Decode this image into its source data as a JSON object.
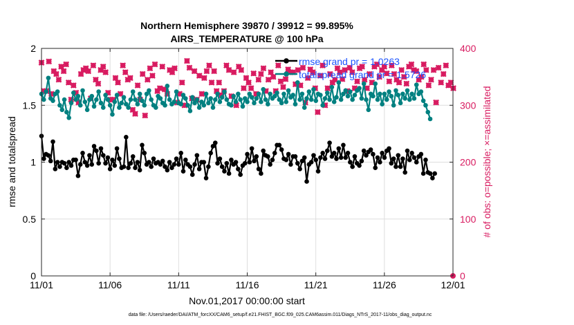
{
  "chart_data": {
    "type": "line",
    "title": "Northern Hemisphere 39870 / 39912 = 99.895%",
    "subtitle": "AIRS_TEMPERATURE @ 100 hPa",
    "xlabel": "Nov.01,2017 00:00:00 start",
    "ylabel_left": "rmse and totalspread",
    "ylabel_right": "# of obs: o=possible; ×=assimilated",
    "xlim": [
      0,
      30
    ],
    "ylim_left": [
      0,
      2
    ],
    "ylim_right": [
      0,
      400
    ],
    "x_ticks": [
      0,
      5,
      10,
      15,
      20,
      25,
      30
    ],
    "x_tick_labels": [
      "11/01",
      "11/06",
      "11/11",
      "11/16",
      "11/21",
      "11/26",
      "12/01"
    ],
    "y_ticks_left": [
      0,
      0.5,
      1,
      1.5,
      2
    ],
    "y_tick_labels_left": [
      "0",
      "0.5",
      "1",
      "1.5",
      "2"
    ],
    "y_ticks_right": [
      0,
      100,
      200,
      300,
      400
    ],
    "y_tick_labels_right": [
      "0",
      "100",
      "200",
      "300",
      "400"
    ],
    "grid": true,
    "legend_position": "top-right",
    "footer": "data file: /Users/raeder/DAI/ATM_forcXX/CAM6_setup/f.e21.FHIST_BGC.f09_025.CAM6assim.011/Diags_NTrS_2017-11/obs_diag_output.nc",
    "colors": {
      "rmse": "#000000",
      "spread": "#008080",
      "obs": "#d81b60",
      "legend_text": "#1a53ff",
      "grid": "#dedede",
      "axis": "#262626"
    },
    "series": [
      {
        "name": "rmse grand pr = 1.0263",
        "axis": "left",
        "values": [
          1.23,
          1.03,
          1.07,
          1.06,
          1.01,
          1.18,
          0.94,
          1.0,
          0.96,
          1.0,
          0.99,
          0.95,
          1.0,
          0.97,
          1.02,
          1.02,
          0.88,
          0.98,
          1.08,
          1.0,
          0.97,
          1.06,
          0.98,
          1.14,
          1.1,
          0.99,
          1.12,
          1.06,
          0.99,
          1.04,
          0.94,
          1.02,
          0.97,
          1.12,
          1.03,
          0.95,
          0.96,
          1.22,
          0.95,
          0.99,
          1.05,
          0.95,
          1.0,
          0.93,
          1.15,
          1.08,
          0.98,
          1.0,
          0.96,
          1.03,
          0.99,
          1.0,
          0.98,
          1.01,
          0.96,
          0.93,
          1.0,
          0.95,
          0.98,
          1.03,
          0.98,
          1.08,
          0.92,
          1.02,
          0.98,
          0.96,
          0.89,
          0.98,
          1.06,
          0.94,
          1.0,
          1.0,
          0.86,
          0.96,
          1.08,
          1.14,
          1.17,
          0.99,
          1.03,
          0.96,
          0.92,
          0.99,
          0.9,
          1.02,
          0.98,
          1.0,
          0.94,
          0.89,
          0.97,
          0.99,
          1.07,
          1.0,
          1.12,
          1.01,
          1.05,
          0.94,
          0.9,
          1.1,
          1.06,
          1.05,
          0.98,
          1.02,
          1.08,
          1.15,
          1.15,
          1.11,
          1.03,
          1.02,
          1.07,
          0.98,
          1.05,
          1.05,
          0.99,
          0.94,
          1.01,
          1.04,
          0.83,
          0.98,
          1.0,
          1.06,
          1.02,
          0.92,
          1.04,
          1.08,
          1.03,
          1.1,
          1.17,
          1.05,
          1.08,
          1.03,
          1.12,
          1.04,
          1.15,
          1.04,
          1.08,
          1.0,
          0.96,
          1.05,
          0.99,
          0.97,
          1.01,
          1.1,
          1.06,
          1.09,
          1.11,
          1.07,
          0.95,
          1.04,
          1.0,
          1.08,
          1.04,
          1.1,
          1.12,
          0.99,
          1.03,
          0.96,
          1.06,
          0.96,
          1.03,
          0.91,
          1.1,
          1.02,
          1.08,
          1.04,
          1.0,
          1.05,
          1.07,
          0.9,
          1.02,
          0.91,
          0.9,
          0.86,
          0.9
        ],
        "x_start": 0,
        "x_step": 0.1667
      },
      {
        "name": "totalspread grand pr = 1.5726",
        "axis": "left",
        "values": [
          1.6,
          1.55,
          1.62,
          1.74,
          1.56,
          1.54,
          1.6,
          1.62,
          1.5,
          1.46,
          1.55,
          1.44,
          1.39,
          1.52,
          1.61,
          1.55,
          1.58,
          1.5,
          1.63,
          1.53,
          1.46,
          1.55,
          1.58,
          1.49,
          1.55,
          1.62,
          1.52,
          1.48,
          1.59,
          1.55,
          1.5,
          1.42,
          1.53,
          1.59,
          1.48,
          1.52,
          1.57,
          1.51,
          1.48,
          1.55,
          1.62,
          1.55,
          1.51,
          1.6,
          1.54,
          1.5,
          1.6,
          1.63,
          1.55,
          1.5,
          1.48,
          1.58,
          1.56,
          1.52,
          1.5,
          1.67,
          1.55,
          1.51,
          1.53,
          1.62,
          1.52,
          1.51,
          1.59,
          1.56,
          1.5,
          1.45,
          1.57,
          1.52,
          1.55,
          1.48,
          1.53,
          1.5,
          1.6,
          1.52,
          1.56,
          1.48,
          1.55,
          1.6,
          1.53,
          1.57,
          1.62,
          1.55,
          1.51,
          1.5,
          1.58,
          1.53,
          1.6,
          1.55,
          1.49,
          1.56,
          1.53,
          1.6,
          1.57,
          1.52,
          1.56,
          1.6,
          1.53,
          1.64,
          1.55,
          1.51,
          1.6,
          1.56,
          1.58,
          1.61,
          1.55,
          1.52,
          1.6,
          1.53,
          1.63,
          1.57,
          1.59,
          1.51,
          1.7,
          1.55,
          1.6,
          1.48,
          1.56,
          1.62,
          1.55,
          1.64,
          1.54,
          1.6,
          1.59,
          1.5,
          1.56,
          1.61,
          1.55,
          1.66,
          1.53,
          1.57,
          1.7,
          1.55,
          1.6,
          1.63,
          1.58,
          1.62,
          1.55,
          1.59,
          1.63,
          1.65,
          1.56,
          1.69,
          1.55,
          1.46,
          1.6,
          1.58,
          1.69,
          1.55,
          1.6,
          1.51,
          1.6,
          1.55,
          1.62,
          1.58,
          1.5,
          1.63,
          1.59,
          1.52,
          1.6,
          1.56,
          1.63,
          1.55,
          1.6,
          1.56,
          1.68,
          1.6,
          1.62,
          1.54,
          1.5,
          1.44,
          1.38
        ],
        "x_start": 0,
        "x_step": 0.1667
      }
    ],
    "obs_possible": {
      "name": "possible",
      "axis": "right",
      "values": [
        375,
        325,
        325,
        377,
        320,
        360,
        355,
        345,
        368,
        360,
        372,
        340,
        310,
        335,
        322,
        305,
        355,
        362,
        365,
        360,
        312,
        370,
        345,
        338,
        362,
        368,
        358,
        322,
        310,
        310,
        348,
        340,
        320,
        370,
        358,
        345,
        348,
        292,
        285,
        335,
        310,
        355,
        282,
        345,
        365,
        352,
        372,
        325,
        330,
        368,
        328,
        320,
        362,
        358,
        365,
        305,
        320,
        340,
        300,
        378,
        366,
        312,
        360,
        310,
        352,
        320,
        348,
        360,
        370,
        340,
        360,
        325,
        340,
        318,
        325,
        370,
        362,
        316,
        358,
        300,
        368,
        362,
        330,
        348,
        340,
        330,
        356,
        320,
        345,
        355,
        365,
        325,
        345,
        358,
        350,
        325,
        370,
        342,
        332,
        346,
        363,
        358,
        358,
        337,
        362,
        335,
        366,
        305,
        348,
        363,
        358,
        330,
        288,
        352,
        370,
        300,
        330,
        355,
        340,
        345,
        365,
        358,
        346,
        362,
        325,
        366,
        358,
        330,
        342,
        365,
        368,
        345,
        330,
        355,
        340,
        368,
        372,
        350,
        362,
        368,
        356,
        342,
        370,
        355,
        345,
        340,
        362,
        350,
        338,
        368,
        372,
        362,
        360,
        345,
        350,
        372,
        362,
        335,
        345,
        362,
        305,
        366,
        340,
        355,
        370,
        335,
        340,
        330
      ],
      "x_start": 0,
      "x_step": 0.1798
    },
    "obs_assimilated": {
      "name": "assimilated",
      "axis": "right",
      "values": [
        375,
        325,
        325,
        377,
        320,
        360,
        355,
        345,
        368,
        360,
        372,
        340,
        310,
        335,
        322,
        305,
        355,
        362,
        365,
        360,
        312,
        370,
        345,
        338,
        362,
        368,
        358,
        322,
        310,
        310,
        348,
        340,
        320,
        370,
        358,
        345,
        348,
        292,
        285,
        335,
        310,
        355,
        282,
        345,
        365,
        352,
        372,
        325,
        330,
        368,
        328,
        320,
        362,
        358,
        365,
        305,
        320,
        340,
        300,
        378,
        366,
        312,
        360,
        310,
        352,
        320,
        348,
        360,
        370,
        340,
        360,
        325,
        340,
        318,
        325,
        370,
        362,
        316,
        358,
        300,
        368,
        362,
        330,
        348,
        340,
        330,
        356,
        320,
        345,
        355,
        365,
        325,
        345,
        358,
        350,
        325,
        370,
        342,
        332,
        346,
        363,
        358,
        358,
        337,
        362,
        335,
        366,
        305,
        348,
        363,
        358,
        330,
        288,
        352,
        370,
        300,
        330,
        355,
        340,
        345,
        365,
        358,
        346,
        362,
        325,
        366,
        358,
        330,
        342,
        365,
        368,
        345,
        330,
        355,
        340,
        368,
        372,
        350,
        362,
        368,
        356,
        342,
        370,
        355,
        345,
        340,
        362,
        350,
        338,
        368,
        372,
        362,
        360,
        345,
        350,
        372,
        362,
        335,
        345,
        362,
        305,
        366,
        340,
        355,
        370,
        335,
        340,
        330
      ],
      "x_start": 0,
      "x_step": 0.1798,
      "final_point_x": 30,
      "final_point_value": 0
    }
  }
}
